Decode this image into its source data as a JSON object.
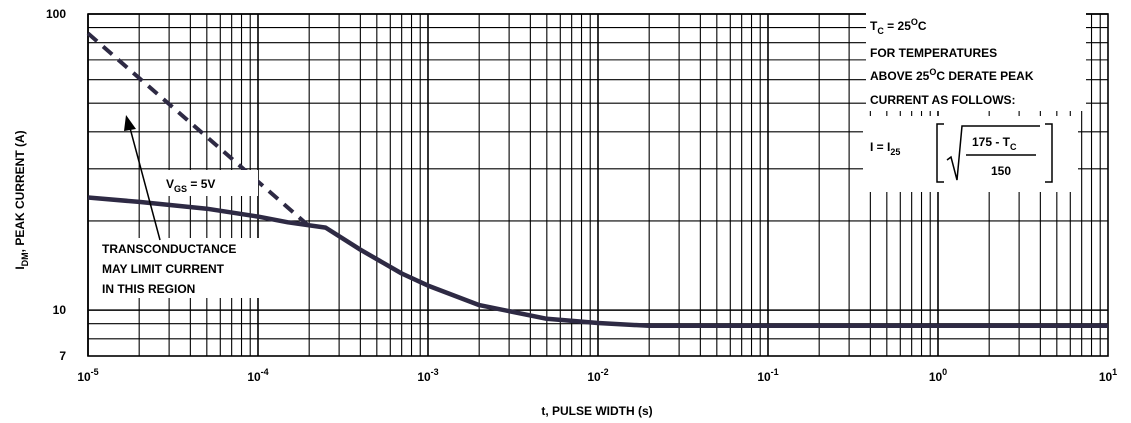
{
  "chart_data": {
    "type": "line",
    "title": "",
    "xlabel": "t, PULSE WIDTH (s)",
    "ylabel": {
      "main": "I",
      "sub": "DM",
      "rest": ", PEAK CURRENT (A)"
    },
    "x_scale": "log",
    "y_scale": "log",
    "xlim": [
      1e-05,
      10
    ],
    "ylim": [
      7,
      100
    ],
    "grid": true,
    "x_ticks": [
      {
        "value": 1e-05,
        "base": "10",
        "exp": "-5"
      },
      {
        "value": 0.0001,
        "base": "10",
        "exp": "-4"
      },
      {
        "value": 0.001,
        "base": "10",
        "exp": "-3"
      },
      {
        "value": 0.01,
        "base": "10",
        "exp": "-2"
      },
      {
        "value": 0.1,
        "base": "10",
        "exp": "-1"
      },
      {
        "value": 1,
        "base": "10",
        "exp": "0"
      },
      {
        "value": 10,
        "base": "10",
        "exp": "1"
      }
    ],
    "y_ticks": [
      {
        "value": 100,
        "label": "100"
      },
      {
        "value": 10,
        "label": "10"
      },
      {
        "value": 7,
        "label": "7"
      }
    ],
    "series": [
      {
        "style": "solid",
        "color": "#2e2a44",
        "x": [
          1e-05,
          2e-05,
          5e-05,
          0.0001,
          0.00015,
          0.00025,
          0.0004,
          0.0007,
          0.001,
          0.002,
          0.005,
          0.01,
          0.02,
          0.05,
          0.1,
          1,
          10
        ],
        "y": [
          24,
          23.2,
          22,
          20.7,
          19.8,
          19,
          16,
          13.3,
          12.1,
          10.4,
          9.35,
          9.05,
          8.85,
          8.85,
          8.85,
          8.85,
          8.85
        ]
      },
      {
        "style": "dashed",
        "color": "#2e2a44",
        "x": [
          1e-05,
          0.0002
        ],
        "y": [
          86,
          19.2
        ]
      }
    ],
    "annotations": {
      "vgs": {
        "main": "V",
        "sub": "GS",
        "rest": " = 5V"
      },
      "transconductance": [
        "TRANSCONDUCTANCE",
        "MAY LIMIT CURRENT",
        "IN THIS REGION"
      ],
      "tc": {
        "main": "T",
        "sub": "C",
        "eq": " = 25",
        "sup": "O",
        "unit": "C"
      },
      "derate": {
        "line1": "FOR TEMPERATURES",
        "line2_pre": "ABOVE 25",
        "line2_sup": "O",
        "line2_post": "C DERATE PEAK",
        "line3": "CURRENT AS FOLLOWS:"
      },
      "formula": {
        "lhs_pre": "I = I",
        "lhs_sub": "25",
        "num_pre": "175 - T",
        "num_sub": "C",
        "den": "150"
      }
    }
  }
}
